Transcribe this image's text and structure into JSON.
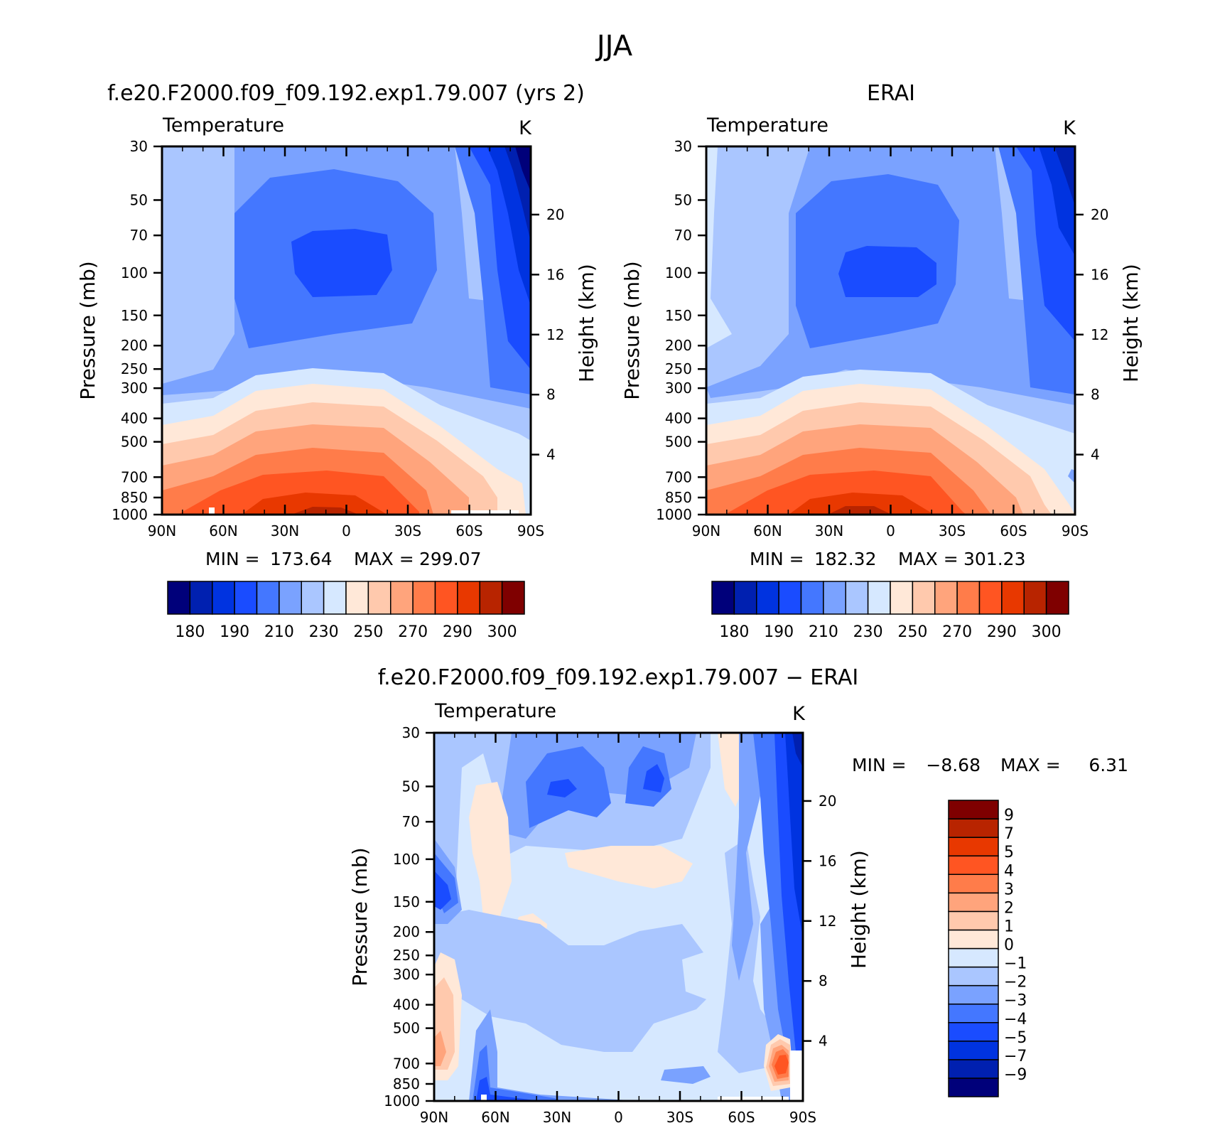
{
  "figure": {
    "title": "JJA"
  },
  "chart_data": [
    {
      "type": "heatmap",
      "title": "f.e20.F2000.f09_f09.192.exp1.79.007 (yrs 2)",
      "subtitle": "Temperature",
      "units": "K",
      "ylabel": "Pressure (mb)",
      "ylabel_right": "Height (km)",
      "x_ticks": [
        "90N",
        "60N",
        "30N",
        "0",
        "30S",
        "60S",
        "90S"
      ],
      "y_ticks": [
        30,
        50,
        70,
        100,
        150,
        200,
        250,
        300,
        400,
        500,
        700,
        850,
        1000
      ],
      "height_ticks": [
        20,
        16,
        12,
        8,
        4
      ],
      "stats": {
        "min_label": "MIN =",
        "min": "173.64",
        "max_label": "MAX =",
        "max": "299.07"
      },
      "levels": [
        180,
        185,
        190,
        200,
        210,
        220,
        230,
        240,
        250,
        260,
        270,
        280,
        290,
        295,
        300
      ],
      "colorbar_labels": [
        "180",
        "190",
        "210",
        "230",
        "250",
        "270",
        "290",
        "300"
      ],
      "colors": [
        "#00007a",
        "#0020b0",
        "#0033e0",
        "#1a4cff",
        "#4477ff",
        "#7aa2ff",
        "#aac6ff",
        "#d6e8ff",
        "#ffe8d8",
        "#ffc9ad",
        "#ffa47c",
        "#ff7c4a",
        "#ff5522",
        "#e83800",
        "#b82400",
        "#7f0000"
      ]
    },
    {
      "type": "heatmap",
      "title": "ERAI",
      "subtitle": "Temperature",
      "units": "K",
      "ylabel": "Pressure (mb)",
      "ylabel_right": "Height (km)",
      "x_ticks": [
        "90N",
        "60N",
        "30N",
        "0",
        "30S",
        "60S",
        "90S"
      ],
      "y_ticks": [
        30,
        50,
        70,
        100,
        150,
        200,
        250,
        300,
        400,
        500,
        700,
        850,
        1000
      ],
      "height_ticks": [
        20,
        16,
        12,
        8,
        4
      ],
      "stats": {
        "min_label": "MIN =",
        "min": "182.32",
        "max_label": "MAX =",
        "max": "301.23"
      },
      "levels": [
        180,
        185,
        190,
        200,
        210,
        220,
        230,
        240,
        250,
        260,
        270,
        280,
        290,
        295,
        300
      ],
      "colorbar_labels": [
        "180",
        "190",
        "210",
        "230",
        "250",
        "270",
        "290",
        "300"
      ],
      "colors": [
        "#00007a",
        "#0020b0",
        "#0033e0",
        "#1a4cff",
        "#4477ff",
        "#7aa2ff",
        "#aac6ff",
        "#d6e8ff",
        "#ffe8d8",
        "#ffc9ad",
        "#ffa47c",
        "#ff7c4a",
        "#ff5522",
        "#e83800",
        "#b82400",
        "#7f0000"
      ]
    },
    {
      "type": "heatmap",
      "title": "f.e20.F2000.f09_f09.192.exp1.79.007 − ERAI",
      "subtitle": "Temperature",
      "units": "K",
      "ylabel": "Pressure (mb)",
      "ylabel_right": "Height (km)",
      "x_ticks": [
        "90N",
        "60N",
        "30N",
        "0",
        "30S",
        "60S",
        "90S"
      ],
      "y_ticks": [
        30,
        50,
        70,
        100,
        150,
        200,
        250,
        300,
        400,
        500,
        700,
        850,
        1000
      ],
      "height_ticks": [
        20,
        16,
        12,
        8,
        4
      ],
      "stats": {
        "min_label": "MIN =",
        "min": "−8.68",
        "max_label": "MAX =",
        "max": "6.31"
      },
      "levels": [
        -9,
        -7,
        -5,
        -4,
        -3,
        -2,
        -1,
        0,
        1,
        2,
        3,
        4,
        5,
        7,
        9
      ],
      "colorbar_labels": [
        "9",
        "7",
        "5",
        "4",
        "3",
        "2",
        "1",
        "0",
        "−1",
        "−2",
        "−3",
        "−4",
        "−5",
        "−7",
        "−9"
      ],
      "colors": [
        "#00007a",
        "#0020b0",
        "#0033e0",
        "#1a4cff",
        "#4477ff",
        "#7aa2ff",
        "#aac6ff",
        "#d6e8ff",
        "#ffe8d8",
        "#ffc9ad",
        "#ffa47c",
        "#ff7c4a",
        "#ff5522",
        "#e83800",
        "#b82400",
        "#7f0000"
      ]
    }
  ]
}
